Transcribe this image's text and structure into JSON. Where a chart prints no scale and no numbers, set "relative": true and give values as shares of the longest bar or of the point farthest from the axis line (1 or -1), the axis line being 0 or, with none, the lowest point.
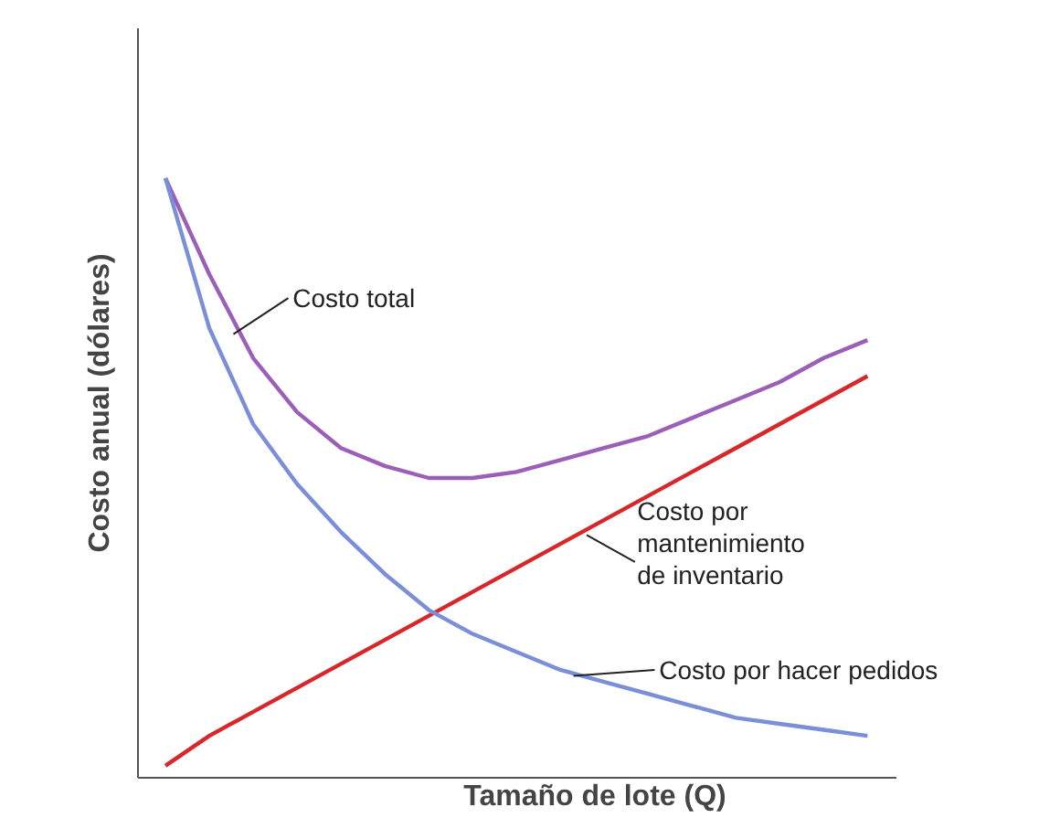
{
  "chart_data": {
    "type": "line",
    "relative": true,
    "xlabel": "Tamaño de lote (Q)",
    "ylabel": "Costo anual (dólares)",
    "categories": [
      null,
      null,
      null,
      null,
      null,
      null,
      null,
      null,
      null,
      null,
      null,
      null,
      null,
      null,
      null,
      null,
      null
    ],
    "series": [
      {
        "name": "Costo total",
        "color": "#9b5fb8",
        "values": [
          1.0,
          0.84,
          0.7,
          0.61,
          0.55,
          0.52,
          0.5,
          0.5,
          0.51,
          0.53,
          0.55,
          0.57,
          0.6,
          0.63,
          0.66,
          0.7,
          0.73
        ]
      },
      {
        "name": "Costo por\nmantenimiento\nde inventario",
        "color": "#d7272b",
        "values": [
          0.02,
          0.07,
          0.11,
          0.15,
          0.19,
          0.23,
          0.27,
          0.31,
          0.35,
          0.39,
          0.43,
          0.47,
          0.51,
          0.55,
          0.59,
          0.63,
          0.67
        ]
      },
      {
        "name": "Costo por hacer pedidos",
        "color": "#7b8ed8",
        "values": [
          1.0,
          0.75,
          0.59,
          0.49,
          0.41,
          0.34,
          0.28,
          0.24,
          0.21,
          0.18,
          0.16,
          0.14,
          0.12,
          0.1,
          0.09,
          0.08,
          0.07
        ]
      }
    ]
  }
}
